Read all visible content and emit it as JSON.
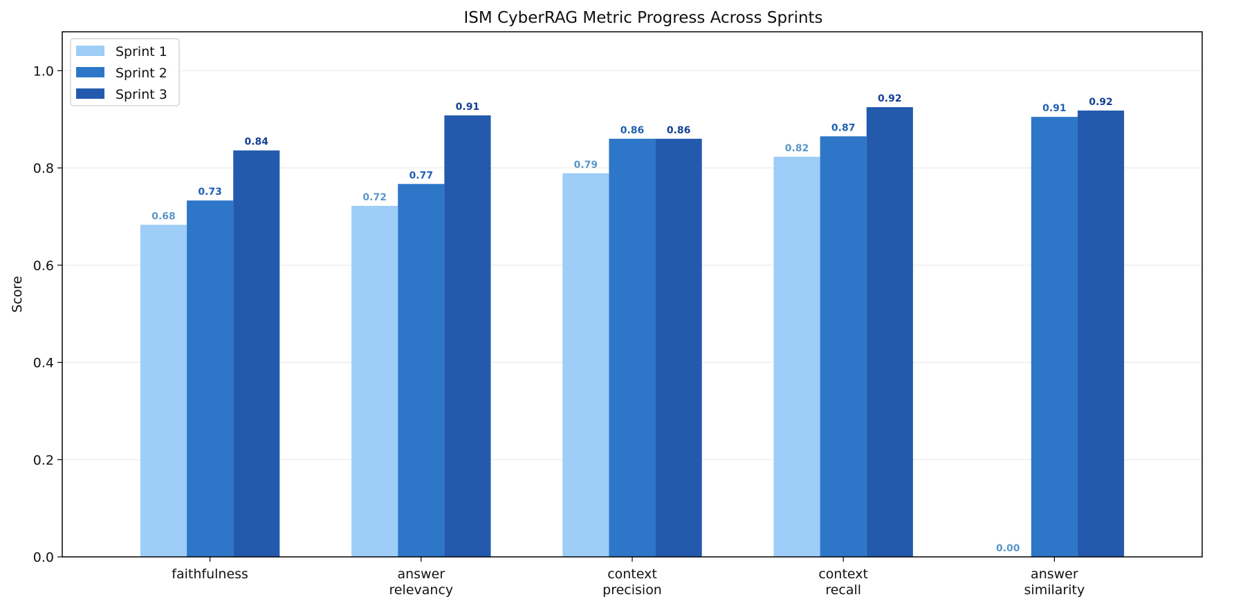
{
  "chart_data": {
    "type": "bar",
    "title": "ISM CyberRAG Metric Progress Across Sprints",
    "xlabel": "",
    "ylabel": "Score",
    "ylim": [
      0,
      1.08
    ],
    "yticks": [
      "0.0",
      "0.2",
      "0.4",
      "0.6",
      "0.8",
      "1.0"
    ],
    "grid": "horizontal",
    "legend_position": "top-left",
    "categories": [
      [
        "faithfulness"
      ],
      [
        "answer",
        "relevancy"
      ],
      [
        "context",
        "precision"
      ],
      [
        "context",
        "recall"
      ],
      [
        "answer",
        "similarity"
      ]
    ],
    "series": [
      {
        "name": "Sprint 1",
        "color": "#9ecdf7",
        "label_color": "#5b97c9",
        "values": [
          0.683,
          0.722,
          0.789,
          0.823,
          0.0
        ],
        "labels": [
          "0.68",
          "0.72",
          "0.79",
          "0.82",
          "0.00"
        ]
      },
      {
        "name": "Sprint 2",
        "color": "#2d76c8",
        "label_color": "#1f5fb3",
        "values": [
          0.733,
          0.767,
          0.86,
          0.865,
          0.905
        ],
        "labels": [
          "0.73",
          "0.77",
          "0.86",
          "0.87",
          "0.91"
        ]
      },
      {
        "name": "Sprint 3",
        "color": "#245aad",
        "label_color": "#123f93",
        "values": [
          0.836,
          0.908,
          0.86,
          0.925,
          0.918
        ],
        "labels": [
          "0.84",
          "0.91",
          "0.86",
          "0.92",
          "0.92"
        ]
      }
    ]
  }
}
